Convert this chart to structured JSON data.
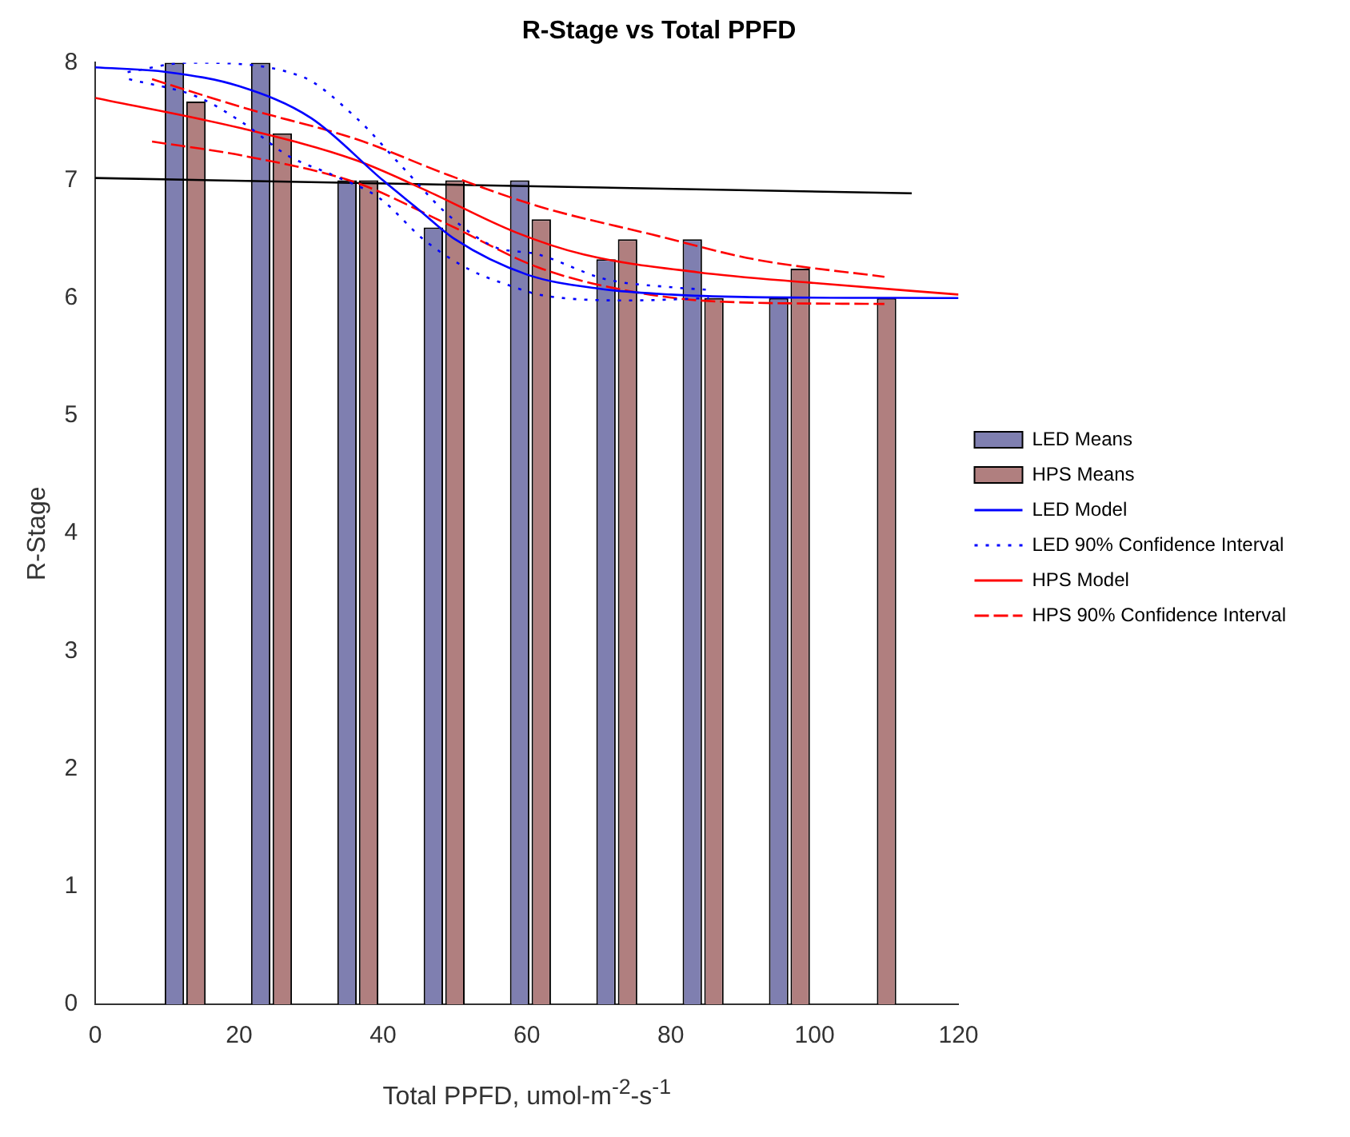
{
  "chart_data": {
    "type": "bar",
    "title": "R-Stage vs Total PPFD",
    "xlabel": "Total PPFD, umol-m$^{-2}$-s$^{-1}$",
    "ylabel": "R-Stage",
    "xlim": [
      0,
      120
    ],
    "xticks": [
      0,
      20,
      40,
      60,
      80,
      100,
      120
    ],
    "ylim": [
      0,
      8
    ],
    "yticks": [
      0,
      1,
      2,
      3,
      4,
      5,
      6,
      7,
      8
    ],
    "grid": false,
    "legend": "right",
    "series": [
      {
        "name": "LED Means",
        "color": "#7f7fb0",
        "x": [
          11,
          23,
          35,
          47,
          59,
          71,
          83,
          95
        ],
        "values": [
          8,
          8,
          7,
          6.6,
          7,
          6.33,
          6.5,
          6
        ]
      },
      {
        "name": "HPS Means",
        "color": "#b07f7f",
        "x": [
          14,
          26,
          38,
          50,
          62,
          74,
          86,
          98,
          110
        ],
        "values": [
          7.67,
          7.4,
          7,
          7,
          6.67,
          6.5,
          6,
          6.25,
          6
        ]
      },
      {
        "name": "LED Model",
        "type": "line",
        "line_style": "solid",
        "color": "#0000ff",
        "x": [
          0,
          10,
          20,
          30,
          40,
          45,
          50,
          60,
          70,
          80,
          90,
          120
        ],
        "values": [
          7.96,
          7.92,
          7.8,
          7.53,
          7.0,
          6.75,
          6.5,
          6.2,
          6.08,
          6.03,
          6.01,
          6.0
        ]
      },
      {
        "name": "LED 90% Confidence Interval",
        "type": "line",
        "line_style": "dotted",
        "color": "#0000ff",
        "x": [
          4.5,
          13,
          28.4,
          36.3,
          42.6,
          49,
          55.3,
          61.6,
          71,
          80.5,
          85.3
        ],
        "values": [
          7.92,
          8.0,
          7.89,
          7.53,
          7.12,
          6.71,
          6.44,
          6.37,
          6.16,
          6.09,
          6.07
        ]
      },
      {
        "type": "line",
        "line_style": "dotted",
        "color": "#0000ff",
        "x": [
          4.7,
          14.2,
          20.5,
          26.8,
          33.2,
          39.5,
          45.8,
          52.1,
          58.4,
          61.6,
          74.2,
          85.3
        ],
        "values": [
          7.86,
          7.71,
          7.49,
          7.21,
          7.04,
          6.85,
          6.49,
          6.24,
          6.09,
          6.03,
          5.98,
          6.0
        ]
      },
      {
        "name": "HPS Model",
        "type": "line",
        "line_style": "solid",
        "color": "#ff0000",
        "x": [
          0,
          20.5,
          36.3,
          45.8,
          58.4,
          67.9,
          83.7,
          99.5,
          120
        ],
        "values": [
          7.7,
          7.44,
          7.17,
          6.92,
          6.56,
          6.37,
          6.22,
          6.13,
          6.03
        ]
      },
      {
        "name": "HPS 90% Confidence Interval",
        "type": "line",
        "line_style": "dashed",
        "color": "#ff0000",
        "x": [
          7.9,
          20.5,
          36.3,
          48.9,
          61.6,
          77.4,
          91.6,
          109.7
        ],
        "values": [
          7.86,
          7.62,
          7.35,
          7.05,
          6.78,
          6.54,
          6.33,
          6.18
        ]
      },
      {
        "type": "line",
        "line_style": "dashed",
        "color": "#ff0000",
        "x": [
          7.9,
          20.5,
          36.3,
          48.9,
          61.6,
          74.2,
          86.8,
          109.7
        ],
        "values": [
          7.33,
          7.21,
          6.98,
          6.63,
          6.26,
          6.06,
          5.97,
          5.95
        ]
      },
      {
        "type": "line",
        "line_style": "solid",
        "color": "#000000",
        "x": [
          0,
          113.5
        ],
        "values": [
          7.02,
          6.89
        ]
      }
    ]
  }
}
